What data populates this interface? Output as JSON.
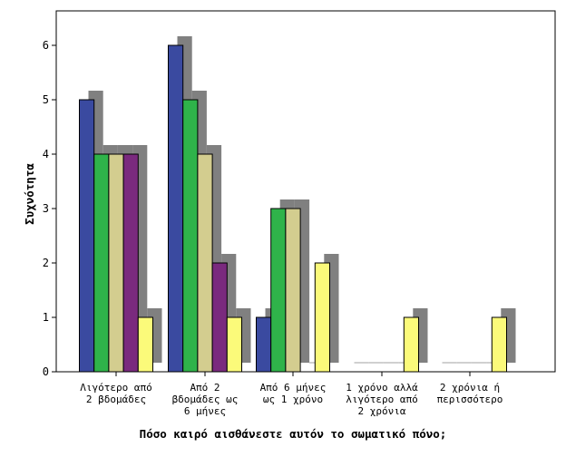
{
  "chart_data": {
    "type": "bar",
    "categories": [
      [
        "Λιγότερο από",
        "2 βδομάδες"
      ],
      [
        "Από 2",
        "βδομάδες ως",
        "6 μήνες"
      ],
      [
        "Από 6 μήνες",
        "ως 1 χρόνο"
      ],
      [
        "1 χρόνο αλλά",
        "λιγότερο από",
        "2 χρόνια"
      ],
      [
        "2 χρόνια ή",
        "περισσότερο"
      ]
    ],
    "series": [
      {
        "color": "#3a4aa0",
        "values": [
          5,
          6,
          1,
          0,
          0
        ]
      },
      {
        "color": "#2fb34a",
        "values": [
          4,
          5,
          3,
          0,
          0
        ]
      },
      {
        "color": "#d3cd8f",
        "values": [
          4,
          4,
          3,
          0,
          0
        ]
      },
      {
        "color": "#7a2a7e",
        "values": [
          4,
          2,
          0,
          0,
          0
        ]
      },
      {
        "color": "#fbfa7a",
        "values": [
          1,
          1,
          2,
          1,
          1
        ]
      }
    ],
    "shadow_color": "#808080",
    "xlabel": "Πόσο καιρό αισθάνεστε αυτόν το σωματικό πόνο;",
    "ylabel": "Συχνότητα",
    "yticks": [
      0,
      1,
      2,
      3,
      4,
      5,
      6
    ],
    "ylim": [
      0,
      6.6
    ],
    "grid": false,
    "legend": "none"
  }
}
